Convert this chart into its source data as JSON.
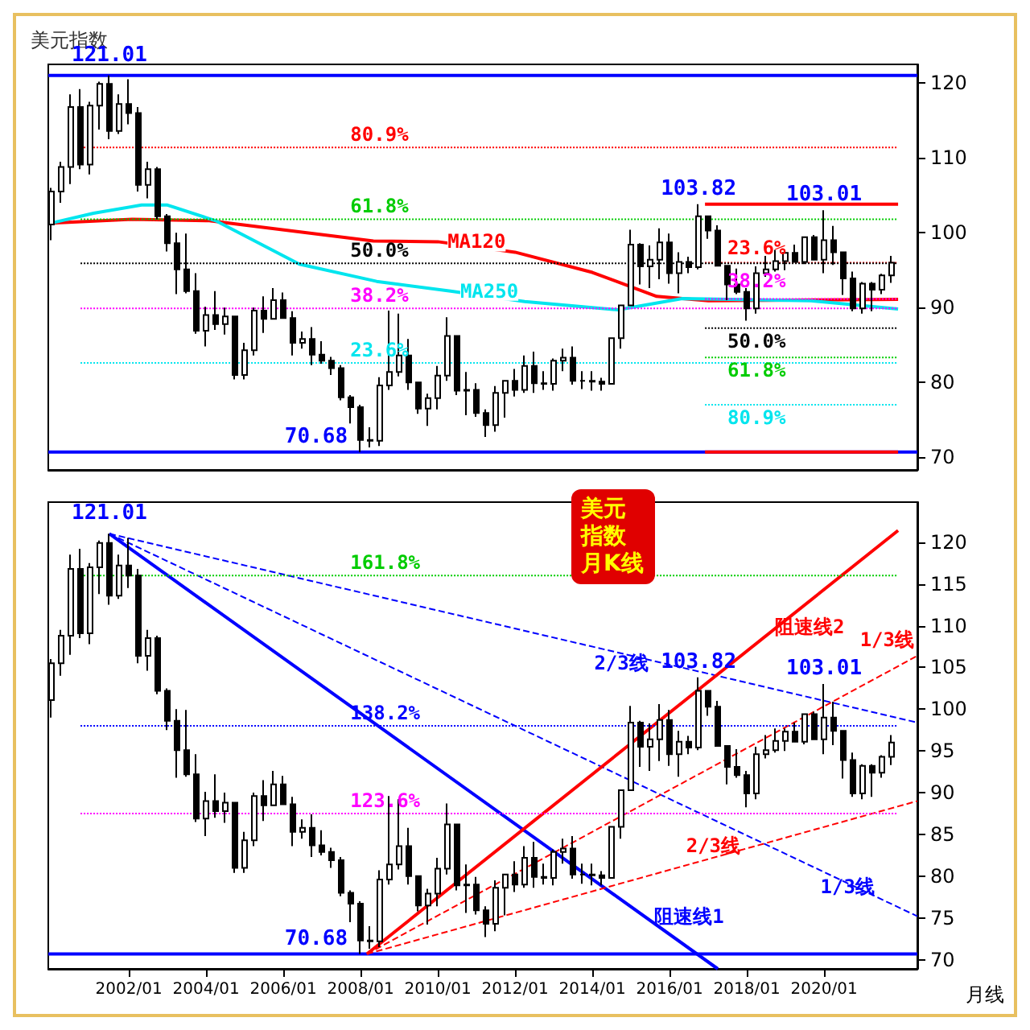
{
  "chart_data": [
    {
      "type": "candlestick",
      "title": "美元指数",
      "color": "#000000",
      "tick_labels": "y",
      "xlim": [
        "1999-12",
        "2022-06"
      ],
      "ylim": [
        68.3,
        122.5
      ],
      "yticks": [
        70,
        80,
        90,
        100,
        110,
        120
      ],
      "x": [
        "2000-01",
        "2000-04",
        "2000-07",
        "2000-10",
        "2001-01",
        "2001-04",
        "2001-07",
        "2001-10",
        "2002-01",
        "2002-04",
        "2002-07",
        "2002-10",
        "2003-01",
        "2003-04",
        "2003-07",
        "2003-10",
        "2004-01",
        "2004-04",
        "2004-07",
        "2004-10",
        "2005-01",
        "2005-04",
        "2005-07",
        "2005-10",
        "2006-01",
        "2006-04",
        "2006-07",
        "2006-10",
        "2007-01",
        "2007-04",
        "2007-07",
        "2007-10",
        "2008-01",
        "2008-04",
        "2008-07",
        "2008-10",
        "2009-01",
        "2009-04",
        "2009-07",
        "2009-10",
        "2010-01",
        "2010-04",
        "2010-07",
        "2010-10",
        "2011-01",
        "2011-04",
        "2011-07",
        "2011-10",
        "2012-01",
        "2012-04",
        "2012-07",
        "2012-10",
        "2013-01",
        "2013-04",
        "2013-07",
        "2013-10",
        "2014-01",
        "2014-04",
        "2014-07",
        "2014-10",
        "2015-01",
        "2015-04",
        "2015-07",
        "2015-10",
        "2016-01",
        "2016-04",
        "2016-07",
        "2016-10",
        "2017-01",
        "2017-04",
        "2017-07",
        "2017-10",
        "2018-01",
        "2018-04",
        "2018-07",
        "2018-10",
        "2019-01",
        "2019-04",
        "2019-07",
        "2019-10",
        "2020-01",
        "2020-04",
        "2020-07",
        "2020-10",
        "2021-01",
        "2021-04",
        "2021-07",
        "2021-10"
      ],
      "ohlc": [
        [
          101.1,
          106.0,
          99.0,
          105.5
        ],
        [
          105.5,
          109.5,
          104.0,
          108.8
        ],
        [
          108.8,
          118.5,
          106.5,
          116.8
        ],
        [
          116.8,
          119.2,
          108.5,
          109.1
        ],
        [
          109.1,
          117.5,
          107.8,
          117.0
        ],
        [
          117.0,
          120.2,
          113.8,
          119.9
        ],
        [
          119.9,
          121.01,
          112.5,
          113.6
        ],
        [
          113.6,
          118.5,
          113.2,
          117.2
        ],
        [
          117.2,
          120.5,
          114.5,
          116.0
        ],
        [
          116.0,
          116.8,
          105.5,
          106.4
        ],
        [
          106.4,
          109.5,
          104.6,
          108.5
        ],
        [
          108.5,
          108.8,
          101.8,
          102.2
        ],
        [
          102.2,
          102.5,
          97.5,
          98.6
        ],
        [
          98.6,
          100.0,
          91.8,
          95.1
        ],
        [
          95.1,
          99.9,
          91.9,
          92.2
        ],
        [
          92.2,
          94.6,
          86.5,
          86.9
        ],
        [
          86.9,
          90.1,
          84.8,
          89.0
        ],
        [
          89.0,
          92.2,
          87.0,
          87.8
        ],
        [
          87.8,
          90.0,
          86.4,
          88.8
        ],
        [
          88.8,
          88.9,
          80.4,
          81.0
        ],
        [
          81.0,
          85.3,
          80.4,
          84.3
        ],
        [
          84.3,
          90.0,
          83.6,
          89.6
        ],
        [
          89.6,
          91.5,
          86.6,
          88.5
        ],
        [
          88.5,
          92.6,
          88.4,
          91.0
        ],
        [
          91.0,
          92.0,
          88.6,
          88.6
        ],
        [
          88.6,
          89.5,
          83.6,
          85.3
        ],
        [
          85.3,
          86.8,
          84.5,
          85.8
        ],
        [
          85.8,
          87.4,
          82.3,
          83.7
        ],
        [
          83.7,
          85.5,
          82.5,
          82.9
        ],
        [
          82.9,
          83.4,
          81.0,
          81.9
        ],
        [
          81.9,
          82.3,
          77.6,
          78.0
        ],
        [
          78.0,
          78.3,
          74.5,
          76.7
        ],
        [
          76.7,
          77.0,
          70.68,
          72.3
        ],
        [
          72.3,
          74.0,
          71.3,
          72.2
        ],
        [
          72.2,
          80.7,
          71.5,
          79.6
        ],
        [
          79.6,
          89.6,
          79.0,
          81.4
        ],
        [
          81.4,
          89.2,
          80.8,
          83.6
        ],
        [
          83.6,
          85.8,
          79.0,
          80.0
        ],
        [
          80.0,
          80.1,
          75.8,
          76.5
        ],
        [
          76.5,
          78.5,
          74.2,
          77.9
        ],
        [
          77.9,
          82.2,
          76.4,
          80.9
        ],
        [
          80.9,
          88.7,
          80.2,
          86.2
        ],
        [
          86.2,
          86.3,
          78.3,
          78.9
        ],
        [
          78.9,
          81.4,
          75.6,
          79.0
        ],
        [
          79.0,
          79.9,
          75.4,
          75.9
        ],
        [
          75.9,
          76.4,
          72.7,
          74.3
        ],
        [
          74.3,
          79.5,
          73.4,
          78.6
        ],
        [
          78.6,
          80.3,
          75.3,
          80.2
        ],
        [
          80.2,
          81.8,
          78.1,
          79.0
        ],
        [
          79.0,
          83.6,
          78.6,
          82.2
        ],
        [
          82.2,
          84.1,
          78.6,
          79.9
        ],
        [
          79.9,
          81.5,
          79.0,
          79.8
        ],
        [
          79.8,
          83.2,
          78.9,
          82.9
        ],
        [
          82.9,
          84.5,
          81.5,
          83.3
        ],
        [
          83.3,
          84.8,
          79.7,
          80.2
        ],
        [
          80.2,
          81.5,
          79.1,
          80.2
        ],
        [
          80.2,
          81.5,
          78.9,
          80.1
        ],
        [
          80.1,
          80.6,
          78.9,
          79.8
        ],
        [
          79.8,
          86.0,
          79.7,
          85.9
        ],
        [
          85.9,
          90.4,
          84.5,
          90.3
        ],
        [
          90.3,
          100.4,
          90.2,
          98.4
        ],
        [
          98.4,
          98.6,
          93.1,
          95.5
        ],
        [
          95.5,
          98.3,
          92.6,
          96.4
        ],
        [
          96.4,
          100.6,
          93.8,
          98.7
        ],
        [
          98.7,
          99.9,
          93.2,
          94.6
        ],
        [
          94.6,
          97.4,
          91.9,
          96.1
        ],
        [
          96.1,
          96.8,
          94.6,
          95.4
        ],
        [
          95.4,
          103.82,
          95.1,
          102.2
        ],
        [
          102.2,
          102.3,
          99.2,
          100.3
        ],
        [
          100.3,
          101.0,
          95.5,
          95.6
        ],
        [
          95.6,
          95.6,
          91.0,
          93.1
        ],
        [
          93.1,
          95.2,
          91.8,
          92.1
        ],
        [
          92.1,
          92.6,
          88.25,
          89.9
        ],
        [
          89.9,
          95.5,
          89.2,
          94.6
        ],
        [
          94.6,
          96.9,
          94.1,
          95.1
        ],
        [
          95.1,
          97.7,
          94.8,
          96.2
        ],
        [
          96.2,
          97.7,
          95.0,
          97.3
        ],
        [
          97.3,
          98.4,
          96.1,
          96.1
        ],
        [
          96.1,
          99.4,
          95.8,
          99.4
        ],
        [
          99.4,
          99.7,
          96.4,
          96.4
        ],
        [
          96.4,
          103.01,
          94.6,
          99.0
        ],
        [
          99.0,
          100.9,
          95.7,
          97.4
        ],
        [
          97.4,
          97.5,
          91.7,
          93.9
        ],
        [
          93.9,
          94.8,
          89.5,
          89.9
        ],
        [
          89.9,
          93.4,
          89.2,
          93.2
        ],
        [
          93.2,
          93.4,
          89.5,
          92.4
        ],
        [
          92.4,
          94.5,
          91.8,
          94.3
        ],
        [
          94.3,
          96.9,
          93.3,
          96.0
        ]
      ],
      "series": [
        {
          "type": "line",
          "name": "MA120",
          "color": "#ff0000",
          "x": [
            "2000-01",
            "2002-02",
            "2004-02",
            "2008-05",
            "2010-01",
            "2012-01",
            "2014-01",
            "2015-09",
            "2017-01",
            "2021-12"
          ],
          "values": [
            101.3,
            101.8,
            101.6,
            98.9,
            98.8,
            97.4,
            94.7,
            91.5,
            90.9,
            91.1
          ]
        },
        {
          "type": "line",
          "name": "MA250",
          "color": "#00e5ee",
          "x": [
            "2000-01",
            "2001-02",
            "2002-05",
            "2003-01",
            "2004-04",
            "2006-06",
            "2008-06",
            "2010-05",
            "2012-04",
            "2014-09",
            "2016-05",
            "2019-09",
            "2021-12"
          ],
          "values": [
            101.3,
            102.6,
            103.7,
            103.7,
            101.6,
            95.8,
            93.5,
            92.2,
            90.8,
            89.7,
            91.2,
            90.9,
            89.8
          ]
        },
        {
          "type": "line",
          "color": "#ff0000",
          "x": [
            "2016-12",
            "2021-12"
          ],
          "values": [
            103.82,
            103.82
          ]
        },
        {
          "type": "line",
          "color": "#ff0000",
          "x": [
            "2016-12",
            "2021-12"
          ],
          "values": [
            70.68,
            70.68
          ]
        },
        {
          "type": "line",
          "name": "23.6%",
          "color": "#ff0000",
          "line_style": "dotted",
          "x": [
            "2016-12",
            "2021-12"
          ],
          "values": [
            96.0,
            96.0
          ]
        },
        {
          "type": "line",
          "name": "38.2%",
          "color": "#ff00ff",
          "line_style": "dotted",
          "x": [
            "2016-12",
            "2021-12"
          ],
          "values": [
            91.16,
            91.16
          ]
        },
        {
          "type": "line",
          "name": "50.0%",
          "color": "#000000",
          "line_style": "dotted",
          "x": [
            "2016-12",
            "2021-12"
          ],
          "values": [
            87.25,
            87.25
          ]
        },
        {
          "type": "line",
          "name": "61.8%",
          "color": "#00cc00",
          "line_style": "dotted",
          "x": [
            "2016-12",
            "2021-12"
          ],
          "values": [
            83.34,
            83.34
          ]
        },
        {
          "type": "line",
          "name": "80.9%",
          "color": "#00e5ee",
          "line_style": "dotted",
          "x": [
            "2016-12",
            "2021-12"
          ],
          "values": [
            77.0,
            77.0
          ]
        },
        {
          "type": "line",
          "name": "80.9%",
          "color": "#ff0000",
          "line_style": "dotted",
          "x": [
            "2000-10",
            "2021-12"
          ],
          "values": [
            111.4,
            111.4
          ]
        },
        {
          "type": "line",
          "name": "61.8%",
          "color": "#00cc00",
          "line_style": "dotted",
          "x": [
            "2000-10",
            "2021-12"
          ],
          "values": [
            101.8,
            101.8
          ]
        },
        {
          "type": "line",
          "name": "50.0%",
          "color": "#000000",
          "line_style": "dotted",
          "x": [
            "2000-10",
            "2021-12"
          ],
          "values": [
            95.9,
            95.9
          ]
        },
        {
          "type": "line",
          "name": "38.2%",
          "color": "#ff00ff",
          "line_style": "dotted",
          "x": [
            "2000-10",
            "2021-12"
          ],
          "values": [
            89.9,
            89.9
          ]
        },
        {
          "type": "line",
          "name": "23.6%",
          "color": "#00e5ee",
          "line_style": "dotted",
          "x": [
            "2000-10",
            "2021-12"
          ],
          "values": [
            82.6,
            82.6
          ]
        }
      ],
      "ref_lines": [
        {
          "axis": "y",
          "value": 121.01,
          "color": "#0000ff",
          "line_style": "solid"
        },
        {
          "axis": "y",
          "value": 70.68,
          "color": "#0000ff",
          "line_style": "solid"
        }
      ],
      "annotations": [
        {
          "text": "121.01",
          "x": "2001-07",
          "y": 121.01
        },
        {
          "text": "70.68",
          "x": "2008-01",
          "y": 70.68
        },
        {
          "text": "103.82",
          "x": "2016-10",
          "y": 103.82
        },
        {
          "text": "103.01",
          "x": "2020-01",
          "y": 103.01
        }
      ]
    },
    {
      "type": "candlestick",
      "title": "美元指数月K线",
      "color": "#000000",
      "xlim": [
        "1999-12",
        "2022-06"
      ],
      "ylim": [
        68.9,
        124.8
      ],
      "yticks": [
        70,
        75,
        80,
        85,
        90,
        95,
        100,
        105,
        110,
        115,
        120
      ],
      "xticks": [
        {
          "value": "2002-01",
          "label": "2002/01"
        },
        {
          "value": "2004-01",
          "label": "2004/01"
        },
        {
          "value": "2006-01",
          "label": "2006/01"
        },
        {
          "value": "2008-01",
          "label": "2008/01"
        },
        {
          "value": "2010-01",
          "label": "2010/01"
        },
        {
          "value": "2012-01",
          "label": "2012/01"
        },
        {
          "value": "2014-01",
          "label": "2014/01"
        },
        {
          "value": "2016-01",
          "label": "2016/01"
        },
        {
          "value": "2018-01",
          "label": "2018/01"
        },
        {
          "value": "2020-01",
          "label": "2020/01"
        }
      ],
      "x": [
        "2000-01",
        "2000-04",
        "2000-07",
        "2000-10",
        "2001-01",
        "2001-04",
        "2001-07",
        "2001-10",
        "2002-01",
        "2002-04",
        "2002-07",
        "2002-10",
        "2003-01",
        "2003-04",
        "2003-07",
        "2003-10",
        "2004-01",
        "2004-04",
        "2004-07",
        "2004-10",
        "2005-01",
        "2005-04",
        "2005-07",
        "2005-10",
        "2006-01",
        "2006-04",
        "2006-07",
        "2006-10",
        "2007-01",
        "2007-04",
        "2007-07",
        "2007-10",
        "2008-01",
        "2008-04",
        "2008-07",
        "2008-10",
        "2009-01",
        "2009-04",
        "2009-07",
        "2009-10",
        "2010-01",
        "2010-04",
        "2010-07",
        "2010-10",
        "2011-01",
        "2011-04",
        "2011-07",
        "2011-10",
        "2012-01",
        "2012-04",
        "2012-07",
        "2012-10",
        "2013-01",
        "2013-04",
        "2013-07",
        "2013-10",
        "2014-01",
        "2014-04",
        "2014-07",
        "2014-10",
        "2015-01",
        "2015-04",
        "2015-07",
        "2015-10",
        "2016-01",
        "2016-04",
        "2016-07",
        "2016-10",
        "2017-01",
        "2017-04",
        "2017-07",
        "2017-10",
        "2018-01",
        "2018-04",
        "2018-07",
        "2018-10",
        "2019-01",
        "2019-04",
        "2019-07",
        "2019-10",
        "2020-01",
        "2020-04",
        "2020-07",
        "2020-10",
        "2021-01",
        "2021-04",
        "2021-07",
        "2021-10"
      ],
      "ohlc": [
        [
          101.1,
          106.0,
          99.0,
          105.5
        ],
        [
          105.5,
          109.5,
          104.0,
          108.8
        ],
        [
          108.8,
          118.5,
          106.5,
          116.8
        ],
        [
          116.8,
          119.2,
          108.5,
          109.1
        ],
        [
          109.1,
          117.5,
          107.8,
          117.0
        ],
        [
          117.0,
          120.2,
          113.8,
          119.9
        ],
        [
          119.9,
          121.01,
          112.5,
          113.6
        ],
        [
          113.6,
          118.5,
          113.2,
          117.2
        ],
        [
          117.2,
          120.5,
          114.5,
          116.0
        ],
        [
          116.0,
          116.8,
          105.5,
          106.4
        ],
        [
          106.4,
          109.5,
          104.6,
          108.5
        ],
        [
          108.5,
          108.8,
          101.8,
          102.2
        ],
        [
          102.2,
          102.5,
          97.5,
          98.6
        ],
        [
          98.6,
          100.0,
          91.8,
          95.1
        ],
        [
          95.1,
          99.9,
          91.9,
          92.2
        ],
        [
          92.2,
          94.6,
          86.5,
          86.9
        ],
        [
          86.9,
          90.1,
          84.8,
          89.0
        ],
        [
          89.0,
          92.2,
          87.0,
          87.8
        ],
        [
          87.8,
          90.0,
          86.4,
          88.8
        ],
        [
          88.8,
          88.9,
          80.4,
          81.0
        ],
        [
          81.0,
          85.3,
          80.4,
          84.3
        ],
        [
          84.3,
          90.0,
          83.6,
          89.6
        ],
        [
          89.6,
          91.5,
          86.6,
          88.5
        ],
        [
          88.5,
          92.6,
          88.4,
          91.0
        ],
        [
          91.0,
          92.0,
          88.6,
          88.6
        ],
        [
          88.6,
          89.5,
          83.6,
          85.3
        ],
        [
          85.3,
          86.8,
          84.5,
          85.8
        ],
        [
          85.8,
          87.4,
          82.3,
          83.7
        ],
        [
          83.7,
          85.5,
          82.5,
          82.9
        ],
        [
          82.9,
          83.4,
          81.0,
          81.9
        ],
        [
          81.9,
          82.3,
          77.6,
          78.0
        ],
        [
          78.0,
          78.3,
          74.5,
          76.7
        ],
        [
          76.7,
          77.0,
          70.68,
          72.3
        ],
        [
          72.3,
          74.0,
          71.3,
          72.2
        ],
        [
          72.2,
          80.7,
          71.5,
          79.6
        ],
        [
          79.6,
          89.6,
          79.0,
          81.4
        ],
        [
          81.4,
          89.2,
          80.8,
          83.6
        ],
        [
          83.6,
          85.8,
          79.0,
          80.0
        ],
        [
          80.0,
          80.1,
          75.8,
          76.5
        ],
        [
          76.5,
          78.5,
          74.2,
          77.9
        ],
        [
          77.9,
          82.2,
          76.4,
          80.9
        ],
        [
          80.9,
          88.7,
          80.2,
          86.2
        ],
        [
          86.2,
          86.3,
          78.3,
          78.9
        ],
        [
          78.9,
          81.4,
          75.6,
          79.0
        ],
        [
          79.0,
          79.9,
          75.4,
          75.9
        ],
        [
          75.9,
          76.4,
          72.7,
          74.3
        ],
        [
          74.3,
          79.5,
          73.4,
          78.6
        ],
        [
          78.6,
          80.3,
          75.3,
          80.2
        ],
        [
          80.2,
          81.8,
          78.1,
          79.0
        ],
        [
          79.0,
          83.6,
          78.6,
          82.2
        ],
        [
          82.2,
          84.1,
          78.6,
          79.9
        ],
        [
          79.9,
          81.5,
          79.0,
          79.8
        ],
        [
          79.8,
          83.2,
          78.9,
          82.9
        ],
        [
          82.9,
          84.5,
          81.5,
          83.3
        ],
        [
          83.3,
          84.8,
          79.7,
          80.2
        ],
        [
          80.2,
          81.5,
          79.1,
          80.2
        ],
        [
          80.2,
          81.5,
          78.9,
          80.1
        ],
        [
          80.1,
          80.6,
          78.9,
          79.8
        ],
        [
          79.8,
          86.0,
          79.7,
          85.9
        ],
        [
          85.9,
          90.4,
          84.5,
          90.3
        ],
        [
          90.3,
          100.4,
          90.2,
          98.4
        ],
        [
          98.4,
          98.6,
          93.1,
          95.5
        ],
        [
          95.5,
          98.3,
          92.6,
          96.4
        ],
        [
          96.4,
          100.6,
          93.8,
          98.7
        ],
        [
          98.7,
          99.9,
          93.2,
          94.6
        ],
        [
          94.6,
          97.4,
          91.9,
          96.1
        ],
        [
          96.1,
          96.8,
          94.6,
          95.4
        ],
        [
          95.4,
          103.82,
          95.1,
          102.2
        ],
        [
          102.2,
          102.3,
          99.2,
          100.3
        ],
        [
          100.3,
          101.0,
          95.5,
          95.6
        ],
        [
          95.6,
          95.6,
          91.0,
          93.1
        ],
        [
          93.1,
          95.2,
          91.8,
          92.1
        ],
        [
          92.1,
          92.6,
          88.25,
          89.9
        ],
        [
          89.9,
          95.5,
          89.2,
          94.6
        ],
        [
          94.6,
          96.9,
          94.1,
          95.1
        ],
        [
          95.1,
          97.7,
          94.8,
          96.2
        ],
        [
          96.2,
          97.7,
          95.0,
          97.3
        ],
        [
          97.3,
          98.4,
          96.1,
          96.1
        ],
        [
          96.1,
          99.4,
          95.8,
          99.4
        ],
        [
          99.4,
          99.7,
          96.4,
          96.4
        ],
        [
          96.4,
          103.01,
          94.6,
          99.0
        ],
        [
          99.0,
          100.9,
          95.7,
          97.4
        ],
        [
          97.4,
          97.5,
          91.7,
          93.9
        ],
        [
          93.9,
          94.8,
          89.5,
          89.9
        ],
        [
          89.9,
          93.4,
          89.2,
          93.2
        ],
        [
          93.2,
          93.4,
          89.5,
          92.4
        ],
        [
          92.4,
          94.5,
          91.8,
          94.3
        ],
        [
          94.3,
          96.9,
          93.3,
          96.0
        ]
      ],
      "series": [
        {
          "type": "line",
          "name": "阻速线1",
          "color": "#0000ff",
          "x": [
            "2001-07",
            "2017-04"
          ],
          "values": [
            121.01,
            68.9
          ]
        },
        {
          "type": "line",
          "name": "2/3线",
          "color": "#0000ff",
          "line_style": "dashed",
          "x": [
            "2001-07",
            "2022-06"
          ],
          "values": [
            121.01,
            98.4
          ]
        },
        {
          "type": "line",
          "name": "1/3线",
          "color": "#0000ff",
          "line_style": "dashed",
          "x": [
            "2001-07",
            "2022-06"
          ],
          "values": [
            121.01,
            75.2
          ]
        },
        {
          "type": "line",
          "name": "阻速线2",
          "color": "#ff0000",
          "x": [
            "2008-03",
            "2021-12"
          ],
          "values": [
            70.68,
            121.4
          ]
        },
        {
          "type": "line",
          "name": "1/3线",
          "color": "#ff0000",
          "line_style": "dashed",
          "x": [
            "2008-03",
            "2022-06"
          ],
          "values": [
            70.68,
            106.4
          ]
        },
        {
          "type": "line",
          "name": "2/3线",
          "color": "#ff0000",
          "line_style": "dashed",
          "x": [
            "2008-03",
            "2022-06"
          ],
          "values": [
            70.68,
            89.0
          ]
        },
        {
          "type": "line",
          "name": "161.8%",
          "color": "#00cc00",
          "line_style": "dotted",
          "x": [
            "2000-10",
            "2021-12"
          ],
          "values": [
            116,
            116
          ]
        },
        {
          "type": "line",
          "name": "138.2%",
          "color": "#0000ff",
          "line_style": "dotted",
          "x": [
            "2000-10",
            "2021-12"
          ],
          "values": [
            98,
            98
          ]
        },
        {
          "type": "line",
          "name": "123.6%",
          "color": "#ff00ff",
          "line_style": "dotted",
          "x": [
            "2000-10",
            "2021-12"
          ],
          "values": [
            87.5,
            87.5
          ]
        }
      ],
      "ref_lines": [
        {
          "axis": "y",
          "value": 70.68,
          "color": "#0000ff",
          "line_style": "solid"
        }
      ],
      "annotations": [
        {
          "text": "121.01",
          "x": "2001-07",
          "y": 121.01
        },
        {
          "text": "70.68",
          "x": "2008-01",
          "y": 70.68
        },
        {
          "text": "103.82",
          "x": "2016-10",
          "y": 103.82
        },
        {
          "text": "103.01",
          "x": "2020-01",
          "y": 103.01
        },
        "月线"
      ]
    }
  ]
}
